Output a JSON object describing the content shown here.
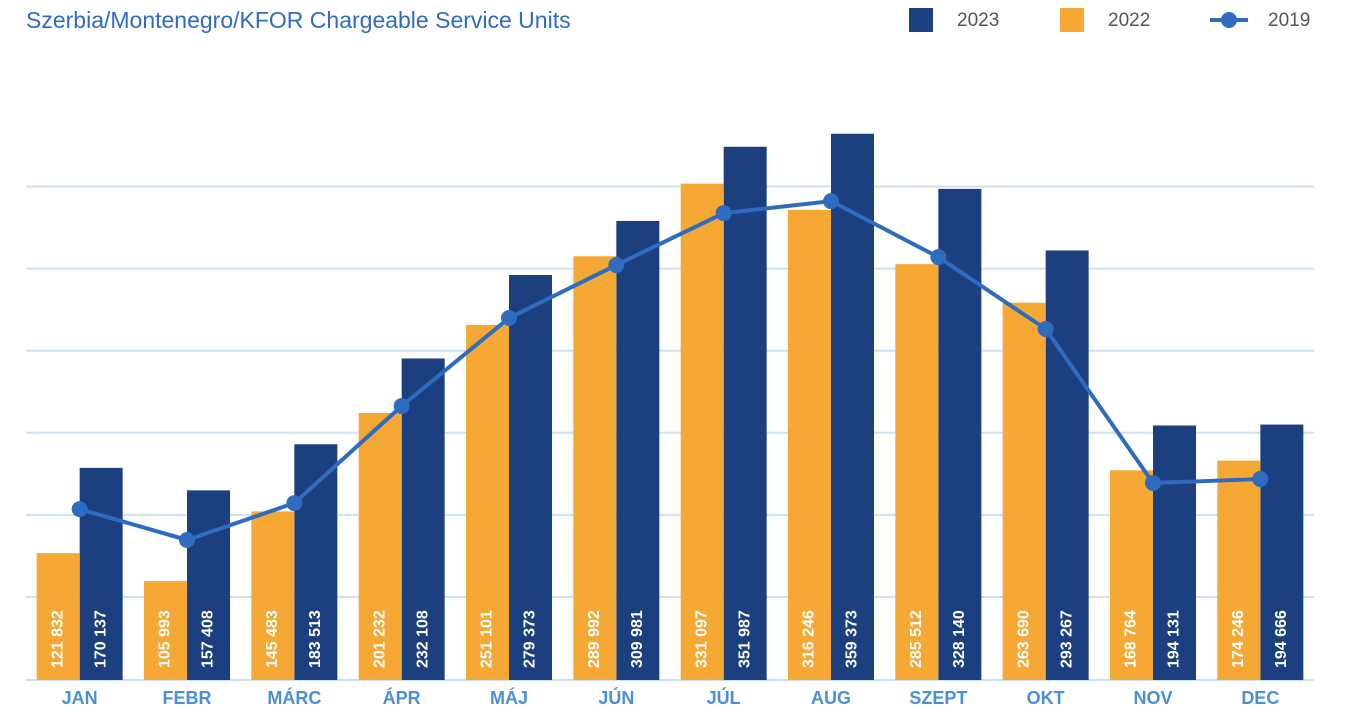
{
  "chart_data": {
    "type": "bar",
    "subtitle": "Szerbia/Montenegro/KFOR Chargeable Service Units",
    "categories": [
      "JAN",
      "FEBR",
      "MÁRC",
      "ÁPR",
      "MÁJ",
      "JÚN",
      "JÚL",
      "AUG",
      "SZEPT",
      "OKT",
      "NOV",
      "DEC"
    ],
    "series": [
      {
        "name": "2023",
        "color": "#1b3f7f",
        "type": "bar",
        "values": [
          170137,
          157408,
          183513,
          232108,
          279373,
          309981,
          351987,
          359373,
          328140,
          293267,
          194131,
          194666
        ],
        "value_labels": [
          "170 137",
          "157 408",
          "183 513",
          "232 108",
          "279 373",
          "309 981",
          "351 987",
          "359 373",
          "328 140",
          "293 267",
          "194 131",
          "194 666"
        ]
      },
      {
        "name": "2022",
        "color": "#f5a833",
        "type": "bar",
        "values": [
          121832,
          105993,
          145483,
          201232,
          251101,
          289992,
          331097,
          316246,
          285512,
          263690,
          168764,
          174246
        ],
        "value_labels": [
          "121 832",
          "105 993",
          "145 483",
          "201 232",
          "251 101",
          "289 992",
          "331 097",
          "316 246",
          "285 512",
          "263 690",
          "168 764",
          "174 246"
        ]
      },
      {
        "name": "2019",
        "color": "#2f6bbf",
        "type": "line",
        "values": [
          146800,
          129300,
          150200,
          205200,
          255000,
          285000,
          314400,
          321200,
          289500,
          248800,
          161600,
          163800
        ]
      }
    ],
    "ylim": [
      50000,
      400000
    ],
    "yticks": [
      97000,
      143500,
      190000,
      236500,
      283000,
      329500
    ],
    "grid": true
  }
}
